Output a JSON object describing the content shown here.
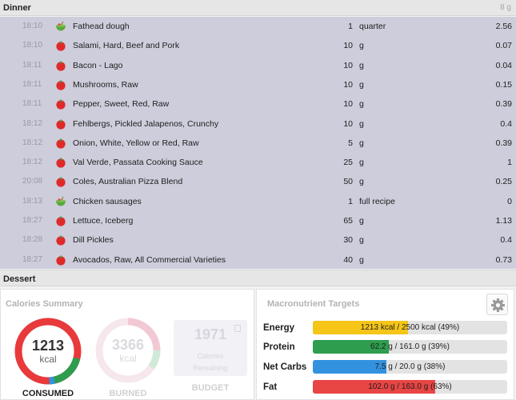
{
  "dinner": {
    "title": "Dinner",
    "amount": "8 g",
    "items": [
      {
        "time": "18:10",
        "icon": "recipe-bowl-icon",
        "name": "Fathead dough",
        "qty": "1",
        "unit": "quarter",
        "carbs": "2.56"
      },
      {
        "time": "18:10",
        "icon": "tomato-icon",
        "name": "Salami, Hard, Beef and Pork",
        "qty": "10",
        "unit": "g",
        "carbs": "0.07"
      },
      {
        "time": "18:11",
        "icon": "tomato-icon",
        "name": "Bacon - Lago",
        "qty": "10",
        "unit": "g",
        "carbs": "0.04"
      },
      {
        "time": "18:11",
        "icon": "tomato-icon",
        "name": "Mushrooms, Raw",
        "qty": "10",
        "unit": "g",
        "carbs": "0.15"
      },
      {
        "time": "18:11",
        "icon": "tomato-icon",
        "name": "Pepper, Sweet, Red, Raw",
        "qty": "10",
        "unit": "g",
        "carbs": "0.39"
      },
      {
        "time": "18:12",
        "icon": "tomato-icon",
        "name": "Fehlbergs, Pickled Jalapenos, Crunchy",
        "qty": "10",
        "unit": "g",
        "carbs": "0.4"
      },
      {
        "time": "18:12",
        "icon": "tomato-icon",
        "name": "Onion, White, Yellow or Red, Raw",
        "qty": "5",
        "unit": "g",
        "carbs": "0.39"
      },
      {
        "time": "18:12",
        "icon": "tomato-icon",
        "name": "Val Verde, Passata Cooking Sauce",
        "qty": "25",
        "unit": "g",
        "carbs": "1"
      },
      {
        "time": "20:08",
        "icon": "tomato-icon",
        "name": "Coles, Australian Pizza Blend",
        "qty": "50",
        "unit": "g",
        "carbs": "0.25"
      },
      {
        "time": "18:13",
        "icon": "recipe-bowl-icon",
        "name": "Chicken sausages",
        "qty": "1",
        "unit": "full recipe",
        "carbs": "0"
      },
      {
        "time": "18:27",
        "icon": "tomato-icon",
        "name": "Lettuce, Iceberg",
        "qty": "65",
        "unit": "g",
        "carbs": "1.13"
      },
      {
        "time": "18:28",
        "icon": "tomato-icon",
        "name": "Dill Pickles",
        "qty": "30",
        "unit": "g",
        "carbs": "0.4"
      },
      {
        "time": "18:27",
        "icon": "tomato-icon",
        "name": "Avocados, Raw, All Commercial Varieties",
        "qty": "40",
        "unit": "g",
        "carbs": "0.73"
      }
    ]
  },
  "dessert": {
    "title": "Dessert"
  },
  "calories": {
    "title": "Calories Summary",
    "consumed": {
      "value": "1213",
      "unit": "kcal",
      "label": "CONSUMED"
    },
    "burned": {
      "value": "3366",
      "unit": "kcal",
      "label": "BURNED"
    },
    "budget": {
      "value": "1971",
      "line1": "Calories",
      "line2": "Remaining",
      "label": "BUDGET"
    }
  },
  "macros": {
    "title": "Macronutrient Targets",
    "rows": [
      {
        "label": "Energy",
        "text": "1213 kcal / 2500 kcal (49%)",
        "fraction": 0.49,
        "color": "#f5c518"
      },
      {
        "label": "Protein",
        "text": "62.2 g / 161.0 g (39%)",
        "fraction": 0.39,
        "color": "#2e9d4e"
      },
      {
        "label": "Net Carbs",
        "text": "7.5 g / 20.0 g (38%)",
        "fraction": 0.38,
        "color": "#3392e0"
      },
      {
        "label": "Fat",
        "text": "102.0 g / 163.0 g (63%)",
        "fraction": 0.63,
        "color": "#e84545"
      }
    ]
  },
  "colors": {
    "consumed_ring": "#e8393b",
    "protein_arc": "#2e9d4e",
    "carbs_arc": "#3392e0",
    "burned_ring_faded": "#f2c8d4"
  }
}
